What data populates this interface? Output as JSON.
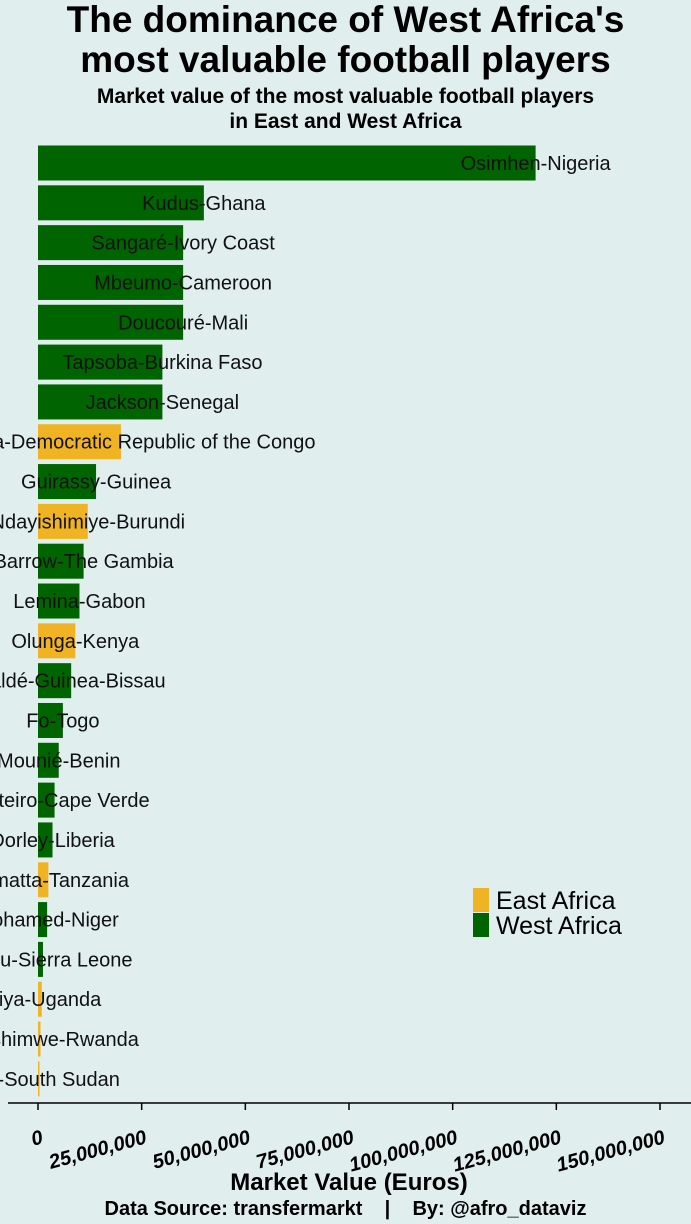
{
  "chart_data": {
    "type": "bar",
    "orientation": "horizontal",
    "title": "The dominance of West Africa's most valuable football players",
    "subtitle": "Market value of the most valuable football players in East and West Africa",
    "xlabel": "Market Value (Euros)",
    "ylabel": "",
    "xlim": [
      0,
      150000000
    ],
    "xticks": [
      0,
      25000000,
      50000000,
      75000000,
      100000000,
      125000000,
      150000000
    ],
    "xtick_labels": [
      "0",
      "25,000,000",
      "50,000,000",
      "75,000,000",
      "100,000,000",
      "125,000,000",
      "150,000,000"
    ],
    "grid": false,
    "legend_position": "right",
    "legend": [
      {
        "name": "East Africa",
        "color": "#f0b323"
      },
      {
        "name": "West Africa",
        "color": "#006400"
      }
    ],
    "bars": [
      {
        "label": "Osimhen-Nigeria",
        "value": 120000000,
        "region": "West Africa"
      },
      {
        "label": "Kudus-Ghana",
        "value": 40000000,
        "region": "West Africa"
      },
      {
        "label": "Sangaré-Ivory Coast",
        "value": 35000000,
        "region": "West Africa"
      },
      {
        "label": "Mbeumo-Cameroon",
        "value": 35000000,
        "region": "West Africa"
      },
      {
        "label": "Doucouré-Mali",
        "value": 35000000,
        "region": "West Africa"
      },
      {
        "label": "Tapsoba-Burkina Faso",
        "value": 30000000,
        "region": "West Africa"
      },
      {
        "label": "Jackson-Senegal",
        "value": 30000000,
        "region": "West Africa"
      },
      {
        "label": "Mbemba-Democratic Republic of the Congo",
        "value": 20000000,
        "region": "East Africa"
      },
      {
        "label": "Guirassy-Guinea",
        "value": 14000000,
        "region": "West Africa"
      },
      {
        "label": "Ndayishimiye-Burundi",
        "value": 12000000,
        "region": "East Africa"
      },
      {
        "label": "Barrow-The Gambia",
        "value": 11000000,
        "region": "West Africa"
      },
      {
        "label": "Lemina-Gabon",
        "value": 10000000,
        "region": "West Africa"
      },
      {
        "label": "Olunga-Kenya",
        "value": 9000000,
        "region": "East Africa"
      },
      {
        "label": "Baldé-Guinea-Bissau",
        "value": 8000000,
        "region": "West Africa"
      },
      {
        "label": "Fo-Togo",
        "value": 6000000,
        "region": "West Africa"
      },
      {
        "label": "Mounié-Benin",
        "value": 5000000,
        "region": "West Africa"
      },
      {
        "label": "Monteiro-Cape Verde",
        "value": 4000000,
        "region": "West Africa"
      },
      {
        "label": "Dorley-Liberia",
        "value": 3500000,
        "region": "West Africa"
      },
      {
        "label": "Samatta-Tanzania",
        "value": 2500000,
        "region": "East Africa"
      },
      {
        "label": "Mohamed-Niger",
        "value": 2200000,
        "region": "West Africa"
      },
      {
        "label": "Bundu-Sierra Leone",
        "value": 1200000,
        "region": "West Africa"
      },
      {
        "label": "Miya-Uganda",
        "value": 900000,
        "region": "East Africa"
      },
      {
        "label": "Imanishimwe-Rwanda",
        "value": 600000,
        "region": "East Africa"
      },
      {
        "label": "Yuel-South Sudan",
        "value": 300000,
        "region": "East Africa"
      }
    ]
  },
  "header": {
    "title_line1": "The dominance of West Africa's",
    "title_line2": "most valuable football players",
    "subtitle_line1": "Market value of the most valuable football players",
    "subtitle_line2": "in East and West Africa"
  },
  "footer": {
    "text": "Data Source: transfermarkt    |    By: @afro_dataviz"
  }
}
